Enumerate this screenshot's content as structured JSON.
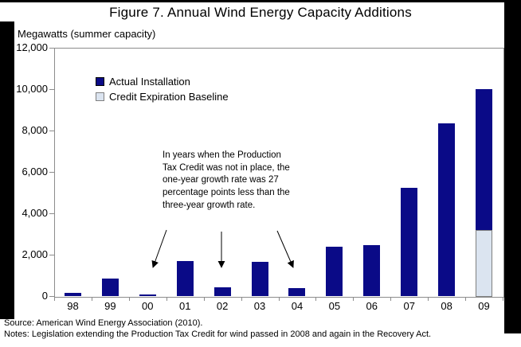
{
  "page": {
    "title": "Figure 7. Annual Wind Energy Capacity Additions",
    "y_axis_unit_label": "Megawatts (summer capacity)",
    "source_line": "Source:  American Wind Energy Association (2010).",
    "notes_line": "Notes:  Legislation extending the Production Tax Credit  for wind passed in 2008 and again in the Recovery Act."
  },
  "legend": {
    "actual_label": "Actual Installation",
    "baseline_label": "Credit Expiration Baseline"
  },
  "annotation": {
    "text": "In years when the Production Tax Credit was not in place, the one-year growth rate was 27 percentage points less than the three-year growth rate."
  },
  "colors": {
    "actual_bar": "#0a0a87",
    "baseline_fill": "#dbe4f0",
    "baseline_border": "#808080",
    "axis_line": "#8c8c8c"
  },
  "chart_data": {
    "type": "bar",
    "title": "Figure 7. Annual Wind Energy Capacity Additions",
    "xlabel": "",
    "ylabel": "Megawatts (summer capacity)",
    "ylim": [
      0,
      12000
    ],
    "grid": false,
    "legend_position": "top-left-inside",
    "y_ticks": [
      0,
      2000,
      4000,
      6000,
      8000,
      10000,
      12000
    ],
    "y_tick_labels": [
      "0",
      "2,000",
      "4,000",
      "6,000",
      "8,000",
      "10,000",
      "12,000"
    ],
    "categories": [
      "98",
      "99",
      "00",
      "01",
      "02",
      "03",
      "04",
      "05",
      "06",
      "07",
      "08",
      "09"
    ],
    "series": [
      {
        "name": "Actual Installation",
        "values": [
          150,
          850,
          70,
          1700,
          430,
          1650,
          390,
          2400,
          2450,
          5250,
          8350,
          10000
        ]
      },
      {
        "name": "Credit Expiration Baseline",
        "values": [
          null,
          null,
          null,
          null,
          null,
          null,
          null,
          null,
          null,
          null,
          null,
          3200
        ]
      }
    ],
    "annotations": [
      {
        "text": "In years when the Production Tax Credit was not in place, the one-year growth rate was 27 percentage points less than the three-year growth rate.",
        "arrow_targets": [
          "00",
          "02",
          "04"
        ]
      }
    ]
  }
}
